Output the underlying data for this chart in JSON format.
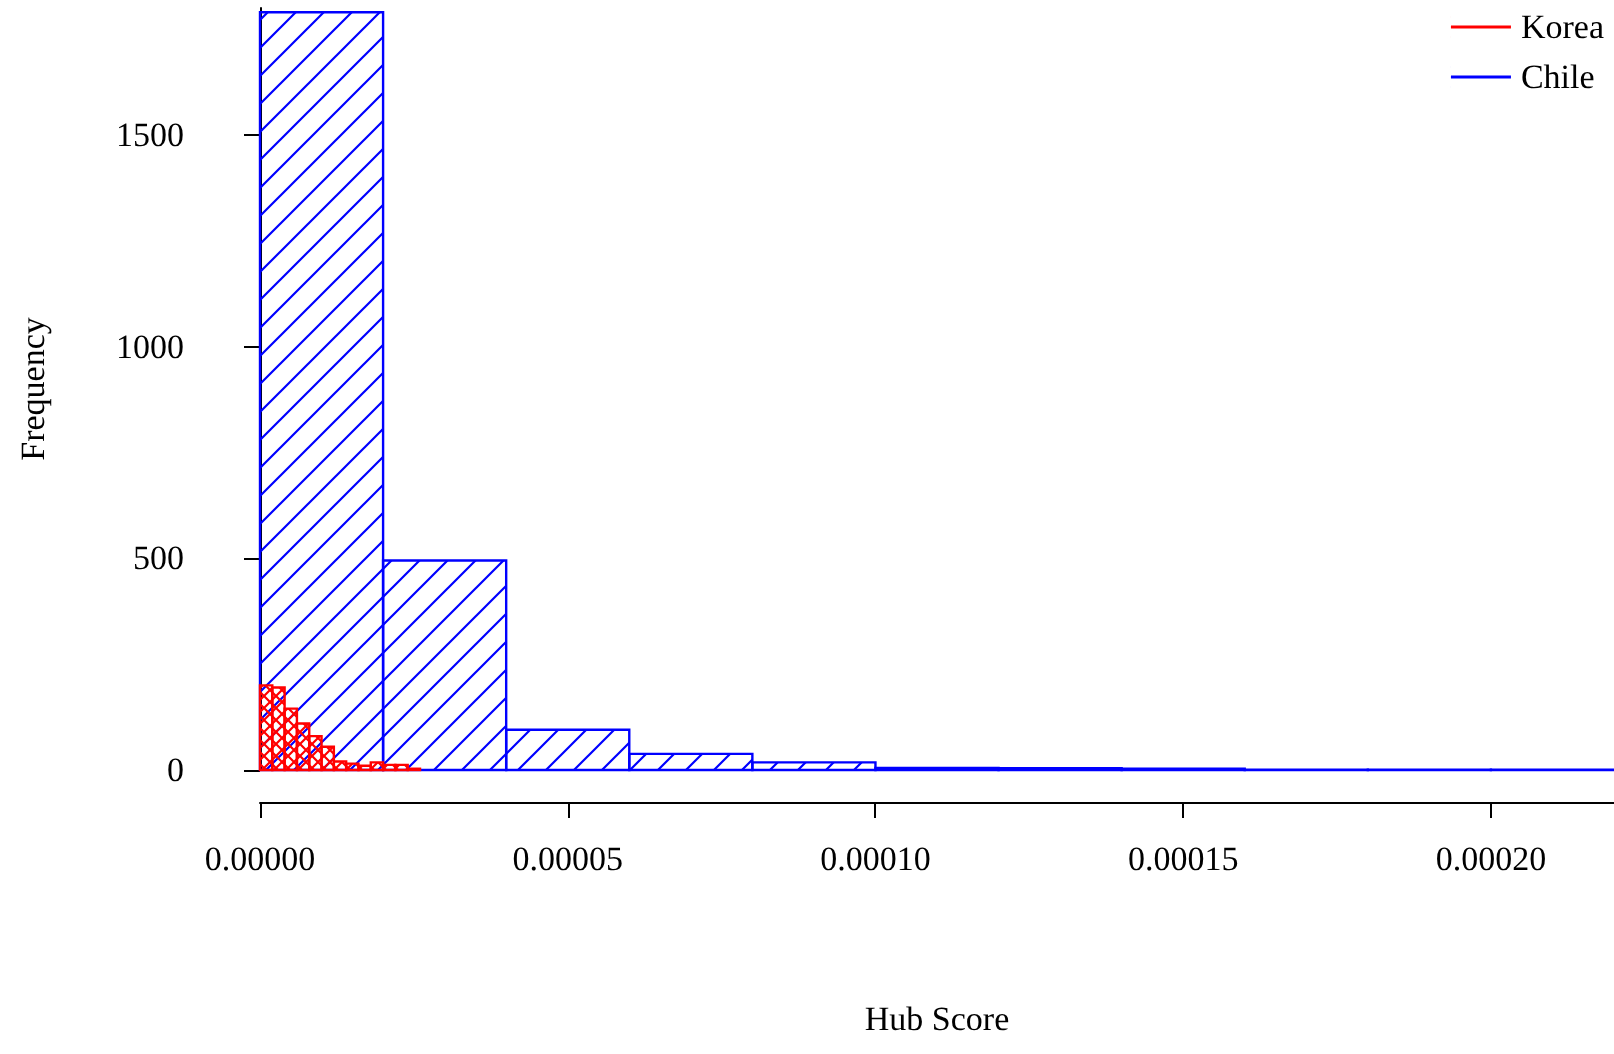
{
  "chart_data": {
    "type": "histogram",
    "xlabel": "Hub Score",
    "ylabel": "Frequency",
    "bins": [
      0,
      2e-05,
      4e-05,
      6e-05,
      8e-05,
      0.0001,
      0.00012,
      0.00014,
      0.00016,
      0.00018,
      0.0002,
      0.00022
    ],
    "series": [
      {
        "name": "Korea",
        "color": "#ff0000",
        "bins": [
          0,
          2e-06,
          4e-06,
          6e-06,
          8e-06,
          1e-05,
          1.2e-05,
          1.4e-05,
          1.6e-05,
          1.8e-05,
          2e-05,
          2.2e-05,
          2.4e-05,
          2.6e-05
        ],
        "values": [
          200,
          195,
          145,
          110,
          80,
          55,
          20,
          15,
          10,
          18,
          12,
          12,
          3
        ]
      },
      {
        "name": "Chile",
        "color": "#0000ff",
        "values": [
          1790,
          495,
          95,
          38,
          18,
          5,
          4,
          3,
          1,
          1,
          1
        ]
      }
    ],
    "xlim": [
      0,
      0.00022
    ],
    "xticks": [
      {
        "value": 0,
        "label": "0.00000"
      },
      {
        "value": 5e-05,
        "label": "0.00005"
      },
      {
        "value": 0.0001,
        "label": "0.00010"
      },
      {
        "value": 0.00015,
        "label": "0.00015"
      },
      {
        "value": 0.0002,
        "label": "0.00020"
      }
    ],
    "ylim": [
      0,
      1800
    ],
    "yticks": [
      0,
      500,
      1000,
      1500
    ],
    "grid": false,
    "legend": "top right"
  }
}
